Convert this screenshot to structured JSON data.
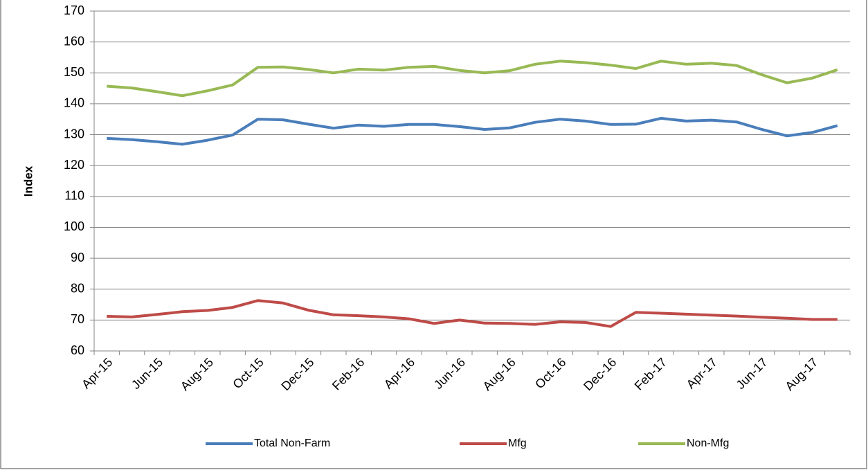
{
  "chart_data": {
    "type": "line",
    "y_label": "Index",
    "categories": [
      "Apr-15",
      null,
      "Jun-15",
      null,
      "Aug-15",
      null,
      "Oct-15",
      null,
      "Dec-15",
      null,
      "Feb-16",
      null,
      "Apr-16",
      null,
      "Jun-16",
      null,
      "Aug-16",
      null,
      "Oct-16",
      null,
      "Dec-16",
      null,
      "Feb-17",
      null,
      "Apr-17",
      null,
      "Jun-17",
      null,
      "Aug-17",
      null
    ],
    "series": [
      {
        "name": "Total Non-Farm",
        "color": "#4a7ebb",
        "values": [
          128.8,
          128.4,
          127.7,
          126.9,
          128.2,
          129.9,
          135.0,
          134.8,
          133.4,
          132.1,
          133.1,
          132.7,
          133.3,
          133.3,
          132.6,
          131.7,
          132.2,
          134.0,
          135.0,
          134.4,
          133.3,
          133.4,
          135.3,
          134.4,
          134.7,
          134.1,
          131.7,
          129.6,
          130.7,
          132.9
        ]
      },
      {
        "name": "Mfg",
        "color": "#be4b48",
        "values": [
          71.2,
          71.0,
          71.8,
          72.7,
          73.1,
          74.1,
          76.3,
          75.5,
          73.2,
          71.7,
          71.4,
          71.0,
          70.4,
          68.9,
          70.0,
          69.0,
          68.9,
          68.6,
          69.4,
          69.2,
          67.9,
          72.5,
          72.2,
          71.9,
          71.6,
          71.3,
          70.9,
          70.6,
          70.2,
          70.2
        ]
      },
      {
        "name": "Non-Mfg",
        "color": "#98b954",
        "values": [
          145.7,
          145.1,
          143.9,
          142.6,
          144.2,
          146.1,
          151.8,
          151.9,
          151.1,
          150.0,
          151.2,
          150.9,
          151.8,
          152.1,
          150.8,
          150.0,
          150.7,
          152.8,
          153.8,
          153.3,
          152.5,
          151.4,
          153.8,
          152.8,
          153.1,
          152.4,
          149.4,
          146.8,
          148.3,
          151.0
        ]
      }
    ],
    "ylim": [
      60,
      170
    ],
    "yticks": [
      60,
      70,
      80,
      90,
      100,
      110,
      120,
      130,
      140,
      150,
      160,
      170
    ],
    "grid": true,
    "legend": "bottom"
  }
}
